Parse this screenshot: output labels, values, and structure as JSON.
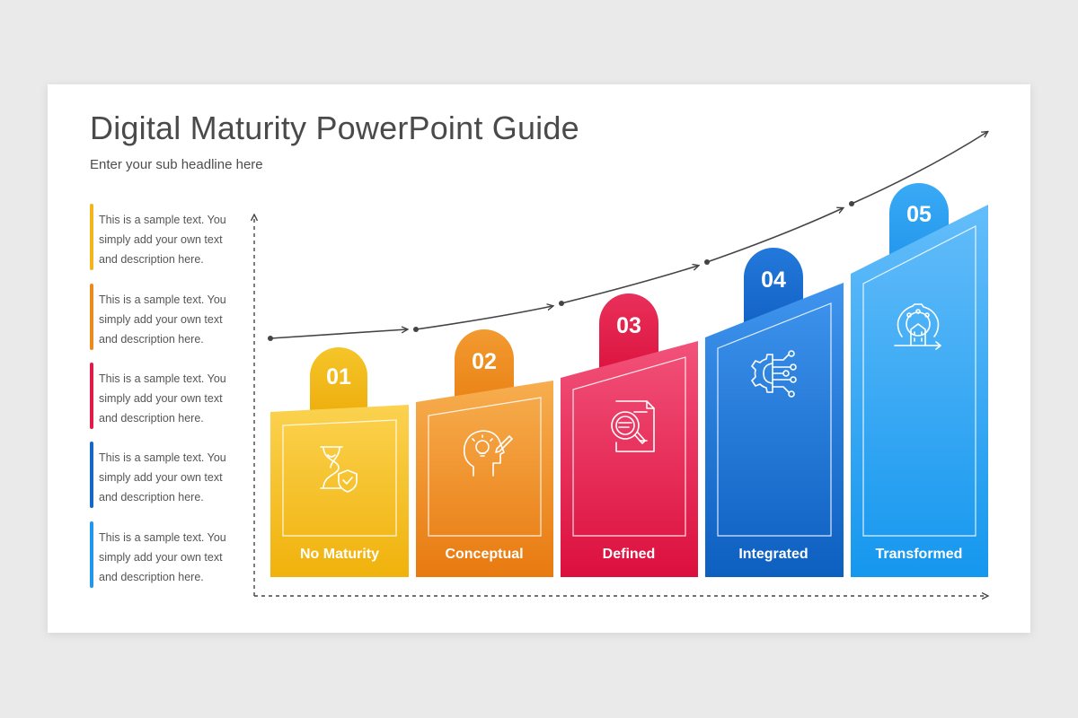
{
  "slide": {
    "title": "Digital Maturity PowerPoint Guide",
    "subtitle": "Enter your sub headline here"
  },
  "notes": [
    {
      "text": "This is a sample text. You simply add your own text and description here.",
      "color": "#f2b51c"
    },
    {
      "text": "This is a sample text. You simply add your own text and description here.",
      "color": "#ec8a1e"
    },
    {
      "text": "This is a sample text. You simply add your own text and description here.",
      "color": "#e21a47"
    },
    {
      "text": "This is a sample text. You simply add your own text and description here.",
      "color": "#1668c7"
    },
    {
      "text": "This is a sample text. You simply add your own text and description here.",
      "color": "#2096ec"
    }
  ],
  "stages": [
    {
      "number": "01",
      "label": "No Maturity",
      "icon": "hourglass-shield-icon",
      "color_light": "#fbd24f",
      "color_dark": "#f0b20c",
      "tab": "#f2bb1a"
    },
    {
      "number": "02",
      "label": "Conceptual",
      "icon": "head-lightbulb-pencil-icon",
      "color_light": "#f7ae4f",
      "color_dark": "#e87a10",
      "tab": "#ee911f"
    },
    {
      "number": "03",
      "label": "Defined",
      "icon": "document-magnifier-icon",
      "color_light": "#f2527a",
      "color_dark": "#dc0f3d",
      "tab": "#e3204a"
    },
    {
      "number": "04",
      "label": "Integrated",
      "icon": "gear-circuit-icon",
      "color_light": "#3f95ee",
      "color_dark": "#0d5fc0",
      "tab": "#1a6ed0"
    },
    {
      "number": "05",
      "label": "Transformed",
      "icon": "gear-building-icon",
      "color_light": "#64bdfa",
      "color_dark": "#1597ee",
      "tab": "#2ea3f2"
    }
  ]
}
